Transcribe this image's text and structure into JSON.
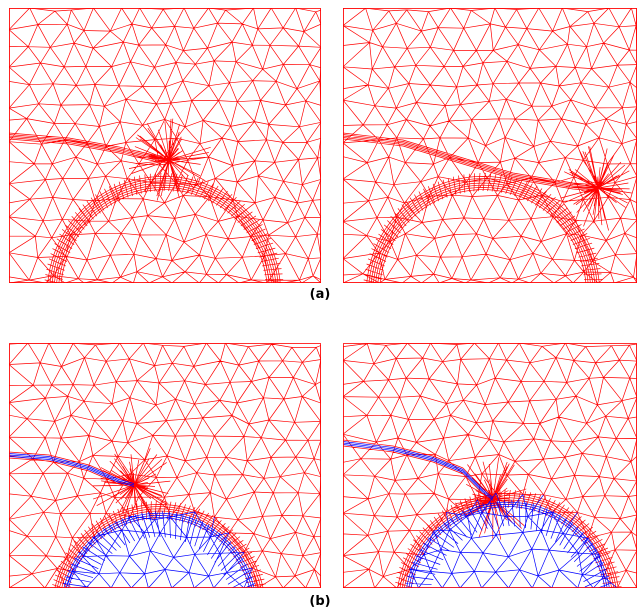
{
  "figure": {
    "caption_a": "(a)",
    "caption_b": "(b)",
    "colors": {
      "outer_mesh": "#ff0000",
      "inclusion_mesh": "#0000ff",
      "background": "#ffffff"
    }
  },
  "panels": [
    {
      "id": "a-left",
      "row": "a",
      "crack_tip_shown": "left",
      "inclusion_mesh_colored": false
    },
    {
      "id": "a-right",
      "row": "a",
      "crack_tip_shown": "right",
      "inclusion_mesh_colored": false
    },
    {
      "id": "b-left",
      "row": "b",
      "crack_tip_shown": "left",
      "inclusion_mesh_colored": true
    },
    {
      "id": "b-right",
      "row": "b",
      "crack_tip_shown": "right",
      "inclusion_mesh_colored": true
    }
  ]
}
